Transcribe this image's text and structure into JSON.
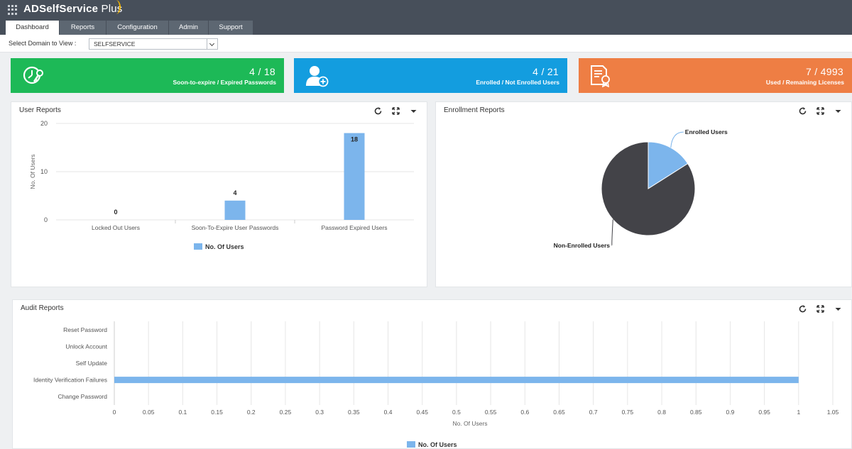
{
  "app": {
    "brand": "ADSelfService",
    "brand_suffix": "Plus",
    "accent": "#f2b400"
  },
  "tabs": [
    {
      "label": "Dashboard",
      "active": true
    },
    {
      "label": "Reports",
      "active": false
    },
    {
      "label": "Configuration",
      "active": false
    },
    {
      "label": "Admin",
      "active": false
    },
    {
      "label": "Support",
      "active": false
    }
  ],
  "domain": {
    "label": "Select Domain to View :",
    "selected": "SELFSERVICE"
  },
  "cards": [
    {
      "value": "4 / 18",
      "label": "Soon-to-expire / Expired Passwords",
      "color": "#1db957",
      "icon": "password-key-icon"
    },
    {
      "value": "4 / 21",
      "label": "Enrolled / Not Enrolled Users",
      "color": "#139ddf",
      "icon": "add-user-icon"
    },
    {
      "value": "7 / 4993",
      "label": "Used / Remaining Licenses",
      "color": "#ee7e44",
      "icon": "license-certificate-icon"
    }
  ],
  "panels": {
    "user": {
      "title": "User Reports"
    },
    "enroll": {
      "title": "Enrollment Reports"
    },
    "audit": {
      "title": "Audit Reports"
    }
  },
  "chart_data": [
    {
      "type": "bar",
      "title": "User Reports",
      "categories": [
        "Locked Out Users",
        "Soon-To-Expire User Passwords",
        "Password Expired Users"
      ],
      "series": [
        {
          "name": "No. Of Users",
          "values": [
            0,
            4,
            18
          ],
          "color": "#7cb5ec"
        }
      ],
      "ylabel": "No. Of Users",
      "ylim": [
        0,
        20
      ],
      "yticks": [
        "0",
        "10",
        "20"
      ],
      "legend": "bottom-center",
      "grid": true
    },
    {
      "type": "pie",
      "title": "Enrollment Reports",
      "categories": [
        "Enrolled Users",
        "Non-Enrolled Users"
      ],
      "values": [
        4,
        21
      ],
      "colors": [
        "#7cb5ec",
        "#434348"
      ]
    },
    {
      "type": "bar",
      "orientation": "horizontal",
      "title": "Audit Reports",
      "categories": [
        "Reset Password",
        "Unlock Account",
        "Self Update",
        "Identity Verification Failures",
        "Change Password"
      ],
      "series": [
        {
          "name": "No. Of Users",
          "values": [
            0,
            0,
            0,
            1,
            0
          ],
          "color": "#7cb5ec"
        }
      ],
      "xlabel": "No. Of Users",
      "xlim": [
        0,
        1.05
      ],
      "xticks": [
        "0",
        "0.05",
        "0.1",
        "0.15",
        "0.2",
        "0.25",
        "0.3",
        "0.35",
        "0.4",
        "0.45",
        "0.5",
        "0.55",
        "0.6",
        "0.65",
        "0.7",
        "0.75",
        "0.8",
        "0.85",
        "0.9",
        "0.95",
        "1",
        "1.05"
      ],
      "legend": "bottom-center",
      "grid": true
    }
  ]
}
